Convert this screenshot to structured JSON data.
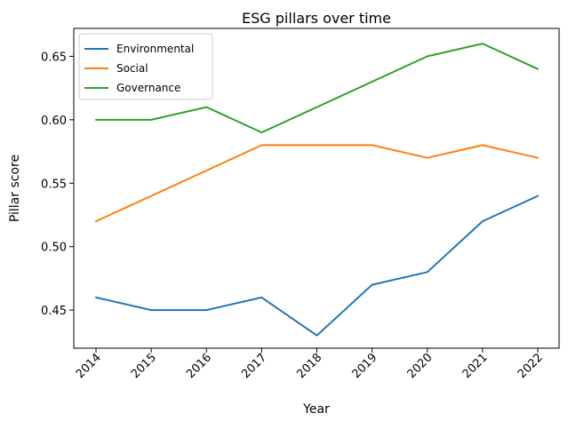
{
  "chart_data": {
    "type": "line",
    "title": "ESG pillars over time",
    "xlabel": "Year",
    "ylabel": "Pillar score",
    "categories": [
      "2014",
      "2015",
      "2016",
      "2017",
      "2018",
      "2019",
      "2020",
      "2021",
      "2022"
    ],
    "yticks": [
      "0.45",
      "0.50",
      "0.55",
      "0.60",
      "0.65"
    ],
    "ylim": [
      0.42,
      0.672
    ],
    "grid": false,
    "legend_position": "top-left",
    "series": [
      {
        "name": "Environmental",
        "color": "#1f77b4",
        "values": [
          0.46,
          0.45,
          0.45,
          0.46,
          0.43,
          0.47,
          0.48,
          0.52,
          0.54
        ]
      },
      {
        "name": "Social",
        "color": "#ff7f0e",
        "values": [
          0.52,
          0.54,
          0.56,
          0.58,
          0.58,
          0.58,
          0.57,
          0.58,
          0.57
        ]
      },
      {
        "name": "Governance",
        "color": "#2ca02c",
        "values": [
          0.6,
          0.6,
          0.61,
          0.59,
          0.61,
          0.63,
          0.65,
          0.66,
          0.64
        ]
      }
    ]
  }
}
